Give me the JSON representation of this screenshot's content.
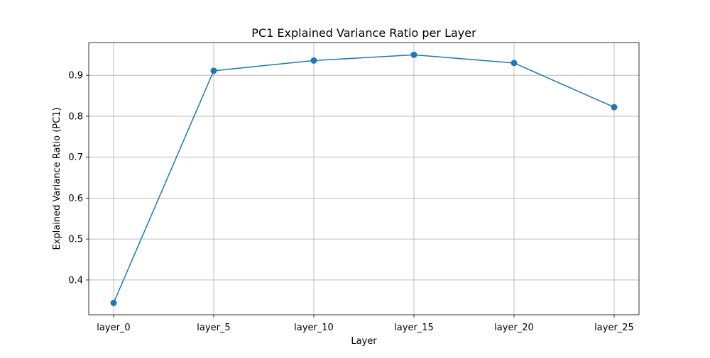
{
  "chart_data": {
    "type": "line",
    "title": "PC1 Explained Variance Ratio per Layer",
    "xlabel": "Layer",
    "ylabel": "Explained Variance Ratio (PC1)",
    "categories": [
      "layer_0",
      "layer_5",
      "layer_10",
      "layer_15",
      "layer_20",
      "layer_25"
    ],
    "series": [
      {
        "values": [
          0.344,
          0.911,
          0.936,
          0.95,
          0.93,
          0.822
        ],
        "color": "#1f77b4",
        "marker": "circle"
      }
    ],
    "ylim": [
      0.315,
      0.98
    ],
    "yticks": [
      0.4,
      0.5,
      0.6,
      0.7,
      0.8,
      0.9
    ],
    "ytick_labels": [
      "0.4",
      "0.5",
      "0.6",
      "0.7",
      "0.8",
      "0.9"
    ],
    "grid": true,
    "legend": "none"
  }
}
